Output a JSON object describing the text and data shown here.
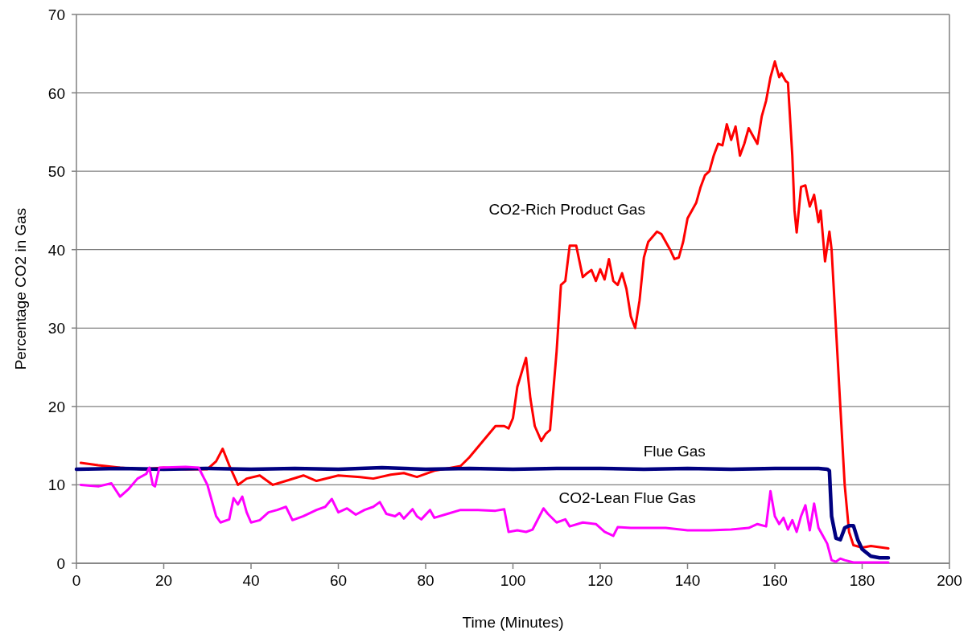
{
  "chart_data": {
    "type": "line",
    "xlabel": "Time (Minutes)",
    "ylabel": "Percentage CO2 in Gas",
    "xlim": [
      0,
      200
    ],
    "xticks": [
      0,
      20,
      40,
      60,
      80,
      100,
      120,
      140,
      160,
      180,
      200
    ],
    "ylim": [
      0,
      70
    ],
    "yticks": [
      0,
      10,
      20,
      30,
      40,
      50,
      60,
      70
    ],
    "grid": "y",
    "marker": "none",
    "line_style": "solid",
    "series": [
      {
        "name": "CO2-Rich Product Gas",
        "color": "#ff0000",
        "x": [
          1,
          5,
          10,
          15,
          20,
          25,
          30,
          32,
          33.5,
          35,
          37,
          39,
          42,
          45,
          48,
          52,
          55,
          60,
          65,
          68,
          72,
          75,
          78,
          82,
          86,
          88,
          90,
          93,
          96,
          98,
          99,
          100,
          101,
          103,
          104,
          105,
          106.5,
          107.5,
          108.5,
          110,
          111,
          112,
          113,
          114.5,
          116,
          117,
          118,
          119,
          120,
          121,
          122,
          123,
          124,
          125,
          126,
          127,
          128,
          129,
          130,
          131,
          133,
          134,
          135,
          136,
          137,
          138,
          139,
          140,
          141,
          142,
          143,
          144,
          145,
          146,
          147,
          148,
          149,
          150,
          151,
          152,
          153,
          154,
          155,
          156,
          157,
          158,
          159,
          160,
          161,
          161.5,
          162.5,
          163,
          164,
          164.5,
          165,
          166,
          167,
          168,
          169,
          170,
          170.5,
          171.5,
          172.5,
          173,
          174,
          175,
          176,
          177,
          178,
          180,
          182,
          186
        ],
        "values": [
          12.8,
          12.5,
          12.2,
          12.0,
          12.2,
          12.0,
          12.0,
          13,
          14.6,
          12.5,
          10.0,
          10.8,
          11.2,
          10,
          10.5,
          11.2,
          10.5,
          11.2,
          11.0,
          10.8,
          11.3,
          11.5,
          11.0,
          11.8,
          12.2,
          12.4,
          13.5,
          15.5,
          17.5,
          17.5,
          17.2,
          18.5,
          22.5,
          26.2,
          21,
          17.5,
          15.6,
          16.5,
          17,
          27,
          35.5,
          36,
          40.5,
          40.5,
          36.5,
          37,
          37.4,
          36,
          37.5,
          36.2,
          38.8,
          36,
          35.5,
          37,
          35,
          31.5,
          30,
          33.5,
          39,
          41,
          42.3,
          42,
          41,
          40,
          38.8,
          39,
          41,
          44,
          45,
          46,
          48,
          49.5,
          50,
          52,
          53.5,
          53.3,
          56,
          54,
          55.7,
          52,
          53.5,
          55.5,
          54.5,
          53.5,
          57,
          59,
          62,
          64,
          62,
          62.5,
          61.5,
          61.3,
          52,
          45,
          42.2,
          48,
          48.2,
          45.5,
          47,
          43.5,
          45,
          38.5,
          42.3,
          40,
          30,
          20,
          10,
          4,
          2.3,
          2.0,
          2.2,
          1.9
        ]
      },
      {
        "name": "Flue Gas",
        "color": "#000080",
        "x": [
          0,
          10,
          20,
          30,
          40,
          50,
          60,
          70,
          80,
          90,
          100,
          110,
          120,
          130,
          140,
          150,
          160,
          170,
          172,
          172.5,
          173,
          174,
          175,
          176,
          177,
          178,
          179,
          180,
          182,
          184,
          186
        ],
        "values": [
          12,
          12.1,
          12,
          12.1,
          12,
          12.1,
          12,
          12.2,
          12,
          12.1,
          12,
          12.1,
          12.1,
          12,
          12.1,
          12,
          12.1,
          12.1,
          12,
          11.8,
          6,
          3.2,
          3.0,
          4.5,
          4.8,
          4.8,
          3,
          1.8,
          0.9,
          0.7,
          0.7
        ]
      },
      {
        "name": "CO2-Lean Flue Gas",
        "color": "#ff00ff",
        "x": [
          1,
          5,
          8,
          10,
          12,
          14,
          16,
          16.7,
          17.5,
          18,
          19,
          25,
          28,
          30,
          32,
          33,
          35,
          36,
          37,
          38,
          39,
          40,
          42,
          44,
          46,
          48,
          49.5,
          52,
          55,
          57,
          58.5,
          60,
          62,
          64,
          66,
          68,
          69.5,
          71,
          73,
          74,
          75,
          77,
          78,
          79,
          81,
          82,
          85,
          88,
          92,
          96,
          98,
          99,
          101,
          103,
          104.5,
          107,
          108,
          110,
          112,
          113,
          116,
          119,
          121,
          123,
          124,
          127,
          130,
          135,
          140,
          145,
          150,
          154,
          156,
          158,
          159,
          160,
          161,
          162,
          163,
          164,
          165,
          166,
          167,
          168,
          169,
          170,
          171,
          172,
          173,
          174,
          175,
          176,
          178,
          186
        ],
        "values": [
          10,
          9.8,
          10.2,
          8.5,
          9.5,
          10.8,
          11.4,
          12.2,
          10,
          9.8,
          12.2,
          12.3,
          12.2,
          10,
          6,
          5.2,
          5.6,
          8.3,
          7.5,
          8.5,
          6.5,
          5.2,
          5.5,
          6.5,
          6.8,
          7.2,
          5.5,
          6,
          6.8,
          7.2,
          8.2,
          6.5,
          7,
          6.2,
          6.8,
          7.2,
          7.8,
          6.3,
          6.0,
          6.4,
          5.7,
          6.9,
          6,
          5.6,
          6.8,
          5.8,
          6.3,
          6.8,
          6.8,
          6.7,
          6.9,
          4,
          4.2,
          4.0,
          4.3,
          7,
          6.3,
          5.2,
          5.6,
          4.7,
          5.2,
          5.0,
          4.0,
          3.5,
          4.6,
          4.5,
          4.5,
          4.5,
          4.2,
          4.2,
          4.3,
          4.5,
          5.0,
          4.7,
          9.2,
          6,
          5,
          5.8,
          4.3,
          5.5,
          4.0,
          6,
          7.4,
          4.2,
          7.6,
          4.5,
          3.5,
          2.5,
          0.4,
          0.2,
          0.6,
          0.4,
          0.1,
          0.1
        ]
      }
    ]
  }
}
